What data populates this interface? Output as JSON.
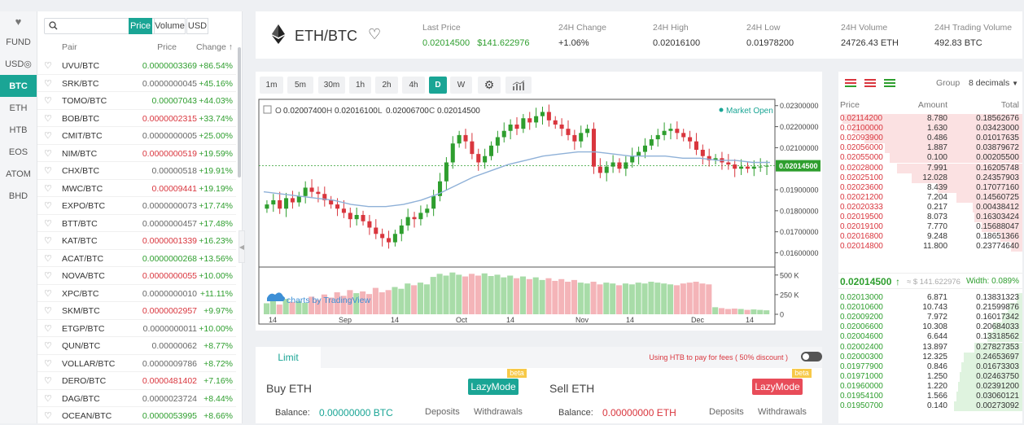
{
  "nav": {
    "favorites_icon": "heart-icon",
    "tabs": [
      "FUND",
      "USD◎",
      "BTC",
      "ETH",
      "HTB",
      "EOS",
      "ATOM",
      "BHD"
    ],
    "active_tab": "BTC"
  },
  "market_list": {
    "search_placeholder": "",
    "sort_buttons": [
      "Price",
      "Volume",
      "USD"
    ],
    "headers": {
      "pair": "Pair",
      "price": "Price",
      "change": "Change ↑"
    },
    "rows": [
      {
        "pair": "UVU/BTC",
        "price": "0.0000003369",
        "price_color": "green",
        "change": "+86.54%"
      },
      {
        "pair": "SRK/BTC",
        "price": "0.0000000045",
        "price_color": "gray",
        "change": "+45.16%"
      },
      {
        "pair": "TOMO/BTC",
        "price": "0.00007043",
        "price_color": "green",
        "change": "+44.03%"
      },
      {
        "pair": "BOB/BTC",
        "price": "0.0000002315",
        "price_color": "red",
        "change": "+33.74%"
      },
      {
        "pair": "CMIT/BTC",
        "price": "0.0000000005",
        "price_color": "gray",
        "change": "+25.00%"
      },
      {
        "pair": "NIM/BTC",
        "price": "0.0000000519",
        "price_color": "red",
        "change": "+19.59%"
      },
      {
        "pair": "CHX/BTC",
        "price": "0.00000518",
        "price_color": "gray",
        "change": "+19.91%"
      },
      {
        "pair": "MWC/BTC",
        "price": "0.00009441",
        "price_color": "red",
        "change": "+19.19%"
      },
      {
        "pair": "EXPO/BTC",
        "price": "0.0000000073",
        "price_color": "gray",
        "change": "+17.74%"
      },
      {
        "pair": "BTT/BTC",
        "price": "0.0000000457",
        "price_color": "gray",
        "change": "+17.48%"
      },
      {
        "pair": "KAT/BTC",
        "price": "0.0000001339",
        "price_color": "red",
        "change": "+16.23%"
      },
      {
        "pair": "ACAT/BTC",
        "price": "0.0000000268",
        "price_color": "green",
        "change": "+13.56%"
      },
      {
        "pair": "NOVA/BTC",
        "price": "0.0000000055",
        "price_color": "red",
        "change": "+10.00%"
      },
      {
        "pair": "XPC/BTC",
        "price": "0.0000000010",
        "price_color": "gray",
        "change": "+11.11%"
      },
      {
        "pair": "SKM/BTC",
        "price": "0.0000002957",
        "price_color": "red",
        "change": "+9.97%"
      },
      {
        "pair": "ETGP/BTC",
        "price": "0.0000000011",
        "price_color": "gray",
        "change": "+10.00%"
      },
      {
        "pair": "QUN/BTC",
        "price": "0.00000062",
        "price_color": "gray",
        "change": "+8.77%"
      },
      {
        "pair": "VOLLAR/BTC",
        "price": "0.0000009786",
        "price_color": "gray",
        "change": "+8.72%"
      },
      {
        "pair": "DERO/BTC",
        "price": "0.0000481402",
        "price_color": "red",
        "change": "+7.16%"
      },
      {
        "pair": "DAG/BTC",
        "price": "0.0000023724",
        "price_color": "gray",
        "change": "+8.44%"
      },
      {
        "pair": "OCEAN/BTC",
        "price": "0.0000053995",
        "price_color": "green",
        "change": "+8.66%"
      }
    ]
  },
  "ticker": {
    "pair": "ETH/BTC",
    "last_price_label": "Last Price",
    "last_price": "0.02014500",
    "last_price_usd": "$141.622976",
    "change_label": "24H Change",
    "change": "+1.06%",
    "high_label": "24H High",
    "high": "0.02016100",
    "low_label": "24H Low",
    "low": "0.01978200",
    "volume_label": "24H Volume",
    "volume": "24726.43 ETH",
    "trading_volume_label": "24H Trading Volume",
    "trading_volume": "492.83 BTC"
  },
  "chart_toolbar": {
    "intervals": [
      "1m",
      "5m",
      "30m",
      "1h",
      "2h",
      "4h",
      "D",
      "W"
    ],
    "active_interval": "D",
    "settings_icon": "gear-icon",
    "indicator_icon": "bar-chart-icon"
  },
  "chart_data": {
    "type": "candlestick",
    "ohlc_legend": {
      "o_label": "O",
      "o": "0.02007400",
      "h_label": "H",
      "h": "0.02016100",
      "l_label": "L",
      "l": "0.02006700",
      "c_label": "C",
      "c": "0.02014500"
    },
    "status": "Market Open",
    "price_ticks": [
      "0.02300000",
      "0.02200000",
      "0.02100000",
      "0.01900000",
      "0.01800000",
      "0.01700000",
      "0.01600000"
    ],
    "current_price_tag": "0.02014500",
    "volume_ticks": [
      "500 K",
      "250 K",
      "0"
    ],
    "x_ticks": [
      "14",
      "Sep",
      "14",
      "Oct",
      "14",
      "Nov",
      "14",
      "Dec",
      "14"
    ],
    "ylim": [
      0.0154,
      0.0233
    ],
    "closes": [
      0.0183,
      0.0185,
      0.0181,
      0.0186,
      0.0184,
      0.0187,
      0.0191,
      0.0189,
      0.0188,
      0.0185,
      0.0183,
      0.0181,
      0.0179,
      0.0176,
      0.0178,
      0.0175,
      0.0172,
      0.0169,
      0.0167,
      0.0165,
      0.0169,
      0.0173,
      0.0177,
      0.0176,
      0.0179,
      0.0181,
      0.0187,
      0.0194,
      0.0203,
      0.0212,
      0.0216,
      0.0213,
      0.0207,
      0.0203,
      0.0206,
      0.0211,
      0.0215,
      0.0218,
      0.0221,
      0.0219,
      0.0224,
      0.0222,
      0.0225,
      0.0227,
      0.0223,
      0.0221,
      0.0219,
      0.0216,
      0.0213,
      0.0217,
      0.0219,
      0.0201,
      0.0198,
      0.0201,
      0.0203,
      0.02,
      0.0203,
      0.0206,
      0.0208,
      0.0211,
      0.0214,
      0.0216,
      0.0218,
      0.0219,
      0.0217,
      0.0215,
      0.0213,
      0.0209,
      0.0206,
      0.0204,
      0.0205,
      0.0203,
      0.0202,
      0.02,
      0.0201,
      0.02,
      0.0201,
      0.0201,
      0.02014
    ],
    "ma_line": [
      0.0189,
      0.0188,
      0.0187,
      0.0186,
      0.0185,
      0.0183,
      0.0182,
      0.0182,
      0.0183,
      0.0185,
      0.0188,
      0.0192,
      0.0196,
      0.0199,
      0.0202,
      0.0204,
      0.0206,
      0.0207,
      0.0208,
      0.0208,
      0.0207,
      0.0206,
      0.0206,
      0.0206,
      0.0205,
      0.0205,
      0.0204,
      0.0204,
      0.0203,
      0.0203
    ],
    "volumes": [
      0.25,
      0.3,
      0.22,
      0.35,
      0.28,
      0.3,
      0.26,
      0.4,
      0.33,
      0.45,
      0.38,
      0.5,
      0.42,
      0.55,
      0.48,
      0.52,
      0.46,
      0.6,
      0.5,
      0.55,
      0.62,
      0.58,
      0.7,
      0.66,
      0.72,
      0.68,
      0.85,
      0.92,
      0.88,
      0.95,
      0.9,
      0.86,
      0.92,
      0.88,
      0.93,
      0.87,
      0.9,
      0.84,
      0.88,
      0.82,
      0.86,
      0.8,
      0.84,
      0.78,
      0.82,
      0.76,
      0.8,
      0.74,
      0.78,
      0.72,
      0.7,
      0.74,
      0.68,
      0.72,
      0.7,
      0.66,
      0.7,
      0.68,
      0.72,
      0.7,
      0.74,
      0.72,
      0.7,
      0.68,
      0.66,
      0.7,
      0.72,
      0.74,
      0.7,
      0.68,
      0.16,
      0.14,
      0.12,
      0.13,
      0.12,
      0.1,
      0.11,
      0.1,
      0.09
    ],
    "vol_max": 560,
    "watermark": "charts by TradingView"
  },
  "orderbook": {
    "view_icons": [
      "both-sides-icon",
      "asks-only-icon",
      "bids-only-icon"
    ],
    "group_label": "Group",
    "decimals": "8 decimals",
    "headers": {
      "price": "Price",
      "amount": "Amount",
      "total": "Total"
    },
    "asks": [
      {
        "price": "0.02114200",
        "amount": "8.780",
        "total": "0.18562676",
        "depth": 0.98
      },
      {
        "price": "0.02100000",
        "amount": "1.630",
        "total": "0.03423000",
        "depth": 0.92
      },
      {
        "price": "0.02093900",
        "amount": "0.486",
        "total": "0.01017635",
        "depth": 0.86
      },
      {
        "price": "0.02056000",
        "amount": "1.887",
        "total": "0.03879672",
        "depth": 0.75
      },
      {
        "price": "0.02055000",
        "amount": "0.100",
        "total": "0.00205500",
        "depth": 0.72
      },
      {
        "price": "0.02028000",
        "amount": "7.991",
        "total": "0.16205748",
        "depth": 0.68
      },
      {
        "price": "0.02025100",
        "amount": "12.028",
        "total": "0.24357903",
        "depth": 0.6
      },
      {
        "price": "0.02023600",
        "amount": "8.439",
        "total": "0.17077160",
        "depth": 0.46
      },
      {
        "price": "0.02021200",
        "amount": "7.204",
        "total": "0.14560725",
        "depth": 0.36
      },
      {
        "price": "0.02020333",
        "amount": "0.217",
        "total": "0.00438412",
        "depth": 0.27
      },
      {
        "price": "0.02019500",
        "amount": "8.073",
        "total": "0.16303424",
        "depth": 0.26
      },
      {
        "price": "0.02019100",
        "amount": "7.770",
        "total": "0.15688047",
        "depth": 0.22
      },
      {
        "price": "0.02016800",
        "amount": "9.248",
        "total": "0.18651366",
        "depth": 0.12
      },
      {
        "price": "0.02014800",
        "amount": "11.800",
        "total": "0.23774640",
        "depth": 0.06
      }
    ],
    "mid_price": "0.02014500",
    "mid_usd": "≈ $ 141.622976",
    "spread_label": "Width: 0.089%",
    "bids": [
      {
        "price": "0.02013000",
        "amount": "6.871",
        "total": "0.13831323",
        "depth": 0.03
      },
      {
        "price": "0.02010600",
        "amount": "10.743",
        "total": "0.21599876",
        "depth": 0.08
      },
      {
        "price": "0.02009200",
        "amount": "7.972",
        "total": "0.16017342",
        "depth": 0.11
      },
      {
        "price": "0.02006600",
        "amount": "10.308",
        "total": "0.20684033",
        "depth": 0.16
      },
      {
        "price": "0.02004600",
        "amount": "6.644",
        "total": "0.13318562",
        "depth": 0.19
      },
      {
        "price": "0.02002400",
        "amount": "13.897",
        "total": "0.27827353",
        "depth": 0.26
      },
      {
        "price": "0.02000300",
        "amount": "12.325",
        "total": "0.24653697",
        "depth": 0.32
      },
      {
        "price": "0.01977900",
        "amount": "0.846",
        "total": "0.01673303",
        "depth": 0.33
      },
      {
        "price": "0.01971000",
        "amount": "1.250",
        "total": "0.02463750",
        "depth": 0.34
      },
      {
        "price": "0.01960000",
        "amount": "1.220",
        "total": "0.02391200",
        "depth": 0.35
      },
      {
        "price": "0.01954100",
        "amount": "1.566",
        "total": "0.03060121",
        "depth": 0.36
      },
      {
        "price": "0.01950700",
        "amount": "0.140",
        "total": "0.00273092",
        "depth": 0.37
      }
    ]
  },
  "order_form": {
    "tab": "Limit",
    "fee_note": "Using HTB to pay for fees ( 50% discount )",
    "buy_title": "Buy",
    "buy_asset": "ETH",
    "sell_title": "Sell",
    "sell_asset": "ETH",
    "lazy_label": "LazyMode",
    "beta": "beta",
    "balance_label": "Balance:",
    "buy_balance": "0.00000000 BTC",
    "sell_balance": "0.00000000 ETH",
    "deposits": "Deposits",
    "withdrawals": "Withdrawals"
  },
  "colors": {
    "accent": "#1aa595",
    "up": "#2e9e2e",
    "down": "#d9363e",
    "ma": "#8fb1d8"
  }
}
